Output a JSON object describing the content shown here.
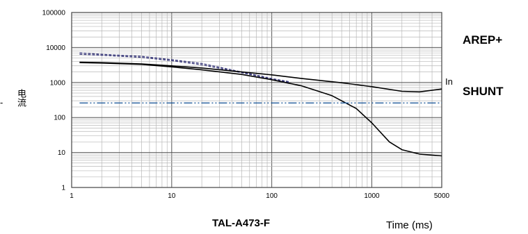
{
  "labels": {
    "arep": "AREP+",
    "shunt": "SHUNT",
    "in_label": "In",
    "model": "TAL-A473-F",
    "ytick_mark": "-"
  },
  "chart_data": {
    "type": "line",
    "title": "",
    "xlabel": "Time (ms)",
    "ylabel": "电流",
    "xscale": "log",
    "yscale": "log",
    "xlim": [
      1,
      5000
    ],
    "ylim": [
      1,
      100000
    ],
    "grid": true,
    "x_ticks": [
      "1",
      "10",
      "100",
      "1000",
      "5000"
    ],
    "y_ticks": [
      "1",
      "10",
      "100",
      "1000",
      "10000",
      "100000"
    ],
    "series": [
      {
        "style": "dashed",
        "color": "#3a3a7a",
        "x": [
          1.2,
          2,
          5,
          10,
          20,
          50,
          100,
          150
        ],
        "y": [
          7000,
          6400,
          5600,
          4500,
          3500,
          2000,
          1300,
          1050
        ]
      },
      {
        "style": "dashed",
        "color": "#3a3a7a",
        "x": [
          1.2,
          2,
          5,
          10,
          20,
          50,
          100,
          150
        ],
        "y": [
          6400,
          6000,
          5200,
          4200,
          3200,
          1900,
          1250,
          1000
        ]
      },
      {
        "style": "solid",
        "color": "#000000",
        "x": [
          1.2,
          2,
          5,
          10,
          20,
          50,
          100,
          200,
          500,
          1000,
          2000,
          3000,
          5000
        ],
        "y": [
          3800,
          3700,
          3400,
          3000,
          2600,
          2000,
          1650,
          1300,
          980,
          760,
          560,
          540,
          650
        ]
      },
      {
        "style": "solid",
        "color": "#000000",
        "x": [
          1.2,
          2,
          5,
          10,
          20,
          50,
          100,
          200,
          400,
          700,
          1000,
          1500,
          2000,
          3000,
          5000
        ],
        "y": [
          3700,
          3600,
          3300,
          2800,
          2300,
          1700,
          1200,
          800,
          420,
          180,
          70,
          20,
          12,
          9,
          8
        ]
      },
      {
        "style": "dashdot",
        "color": "#1f5a9a",
        "x": [
          1.2,
          5000
        ],
        "y": [
          260,
          260
        ]
      }
    ]
  }
}
